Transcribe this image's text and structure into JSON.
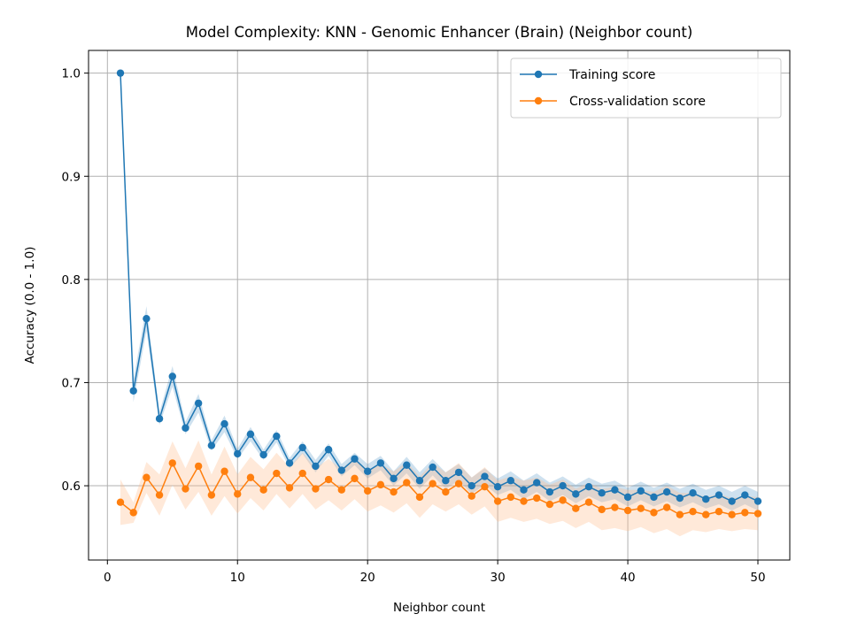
{
  "chart_data": {
    "type": "line",
    "title": "Model Complexity: KNN - Genomic Enhancer (Brain) (Neighbor count)",
    "xlabel": "Neighbor count",
    "ylabel": "Accuracy (0.0 - 1.0)",
    "xlim": [
      -1.45,
      52.45
    ],
    "ylim": [
      0.528,
      1.022
    ],
    "xticks": [
      0,
      10,
      20,
      30,
      40,
      50
    ],
    "yticks": [
      0.6,
      0.7,
      0.8,
      0.9,
      1.0
    ],
    "xtick_labels": [
      "0",
      "10",
      "20",
      "30",
      "40",
      "50"
    ],
    "ytick_labels": [
      "0.6",
      "0.7",
      "0.8",
      "0.9",
      "1.0"
    ],
    "grid": true,
    "legend_position": "upper-right",
    "x": [
      1,
      2,
      3,
      4,
      5,
      6,
      7,
      8,
      9,
      10,
      11,
      12,
      13,
      14,
      15,
      16,
      17,
      18,
      19,
      20,
      21,
      22,
      23,
      24,
      25,
      26,
      27,
      28,
      29,
      30,
      31,
      32,
      33,
      34,
      35,
      36,
      37,
      38,
      39,
      40,
      41,
      42,
      43,
      44,
      45,
      46,
      47,
      48,
      49,
      50
    ],
    "series": [
      {
        "name": "Training score",
        "color": "#1f77b4",
        "band_color": "#1f77b4",
        "values": [
          1.0,
          0.692,
          0.762,
          0.665,
          0.706,
          0.656,
          0.68,
          0.639,
          0.66,
          0.631,
          0.65,
          0.63,
          0.648,
          0.622,
          0.637,
          0.619,
          0.635,
          0.615,
          0.626,
          0.614,
          0.622,
          0.607,
          0.62,
          0.605,
          0.618,
          0.605,
          0.613,
          0.6,
          0.609,
          0.599,
          0.605,
          0.596,
          0.603,
          0.594,
          0.6,
          0.592,
          0.599,
          0.593,
          0.596,
          0.589,
          0.595,
          0.589,
          0.594,
          0.588,
          0.593,
          0.587,
          0.591,
          0.585,
          0.591,
          0.585
        ],
        "band": [
          0.0,
          0.011,
          0.012,
          0.006,
          0.01,
          0.006,
          0.009,
          0.005,
          0.008,
          0.005,
          0.007,
          0.005,
          0.006,
          0.005,
          0.006,
          0.006,
          0.006,
          0.006,
          0.006,
          0.007,
          0.007,
          0.007,
          0.008,
          0.008,
          0.008,
          0.008,
          0.008,
          0.008,
          0.008,
          0.008,
          0.009,
          0.009,
          0.009,
          0.009,
          0.009,
          0.009,
          0.009,
          0.009,
          0.009,
          0.009,
          0.009,
          0.009,
          0.009,
          0.009,
          0.009,
          0.009,
          0.009,
          0.009,
          0.009,
          0.009
        ]
      },
      {
        "name": "Cross-validation score",
        "color": "#ff7f0e",
        "band_color": "#ffbb88",
        "values": [
          0.584,
          0.574,
          0.608,
          0.591,
          0.622,
          0.597,
          0.619,
          0.591,
          0.614,
          0.592,
          0.608,
          0.596,
          0.612,
          0.598,
          0.612,
          0.597,
          0.606,
          0.596,
          0.607,
          0.595,
          0.601,
          0.594,
          0.603,
          0.589,
          0.602,
          0.594,
          0.602,
          0.59,
          0.599,
          0.585,
          0.589,
          0.585,
          0.588,
          0.582,
          0.586,
          0.578,
          0.584,
          0.577,
          0.579,
          0.576,
          0.578,
          0.574,
          0.579,
          0.572,
          0.575,
          0.572,
          0.575,
          0.572,
          0.574,
          0.573
        ],
        "band": [
          0.022,
          0.01,
          0.015,
          0.02,
          0.021,
          0.02,
          0.025,
          0.02,
          0.024,
          0.019,
          0.02,
          0.02,
          0.02,
          0.02,
          0.02,
          0.02,
          0.02,
          0.02,
          0.02,
          0.02,
          0.02,
          0.02,
          0.02,
          0.02,
          0.02,
          0.019,
          0.02,
          0.018,
          0.019,
          0.02,
          0.02,
          0.02,
          0.02,
          0.019,
          0.02,
          0.019,
          0.019,
          0.02,
          0.02,
          0.02,
          0.018,
          0.02,
          0.021,
          0.021,
          0.018,
          0.017,
          0.017,
          0.016,
          0.016,
          0.016
        ]
      }
    ]
  }
}
